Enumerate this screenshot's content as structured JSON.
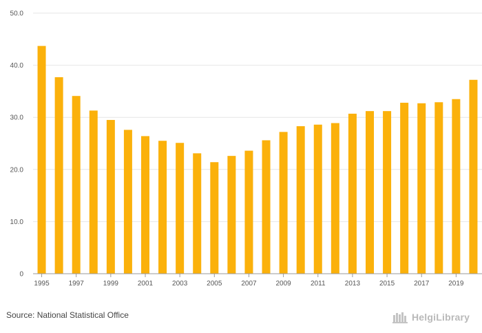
{
  "chart_data": {
    "type": "bar",
    "categories": [
      "1995",
      "1996",
      "1997",
      "1998",
      "1999",
      "2000",
      "2001",
      "2002",
      "2003",
      "2004",
      "2005",
      "2006",
      "2007",
      "2008",
      "2009",
      "2010",
      "2011",
      "2012",
      "2013",
      "2014",
      "2015",
      "2016",
      "2017",
      "2018",
      "2019",
      "2020"
    ],
    "values": [
      43.7,
      37.7,
      34.1,
      31.3,
      29.5,
      27.6,
      26.4,
      25.5,
      25.1,
      23.1,
      21.4,
      22.6,
      23.6,
      25.6,
      27.2,
      28.3,
      28.6,
      28.9,
      30.7,
      31.2,
      31.2,
      32.8,
      32.7,
      32.9,
      33.5,
      37.2
    ],
    "x_tick_labels": [
      "1995",
      "1997",
      "1999",
      "2001",
      "2003",
      "2005",
      "2007",
      "2009",
      "2011",
      "2013",
      "2015",
      "2017",
      "2019"
    ],
    "y_tick_labels": [
      "0",
      "10.0",
      "20.0",
      "30.0",
      "40.0",
      "50.0"
    ],
    "y_ticks": [
      0,
      10,
      20,
      30,
      40,
      50
    ],
    "ylim": [
      0,
      50
    ],
    "title": "",
    "xlabel": "",
    "ylabel": "",
    "bar_color": "#FBB10B",
    "grid": true
  },
  "footer": {
    "source": "Source: National Statistical Office",
    "brand": "HelgiLibrary"
  },
  "colors": {
    "grid": "#e6e6e6",
    "axis": "#999999",
    "bar": "#FBB10B"
  }
}
